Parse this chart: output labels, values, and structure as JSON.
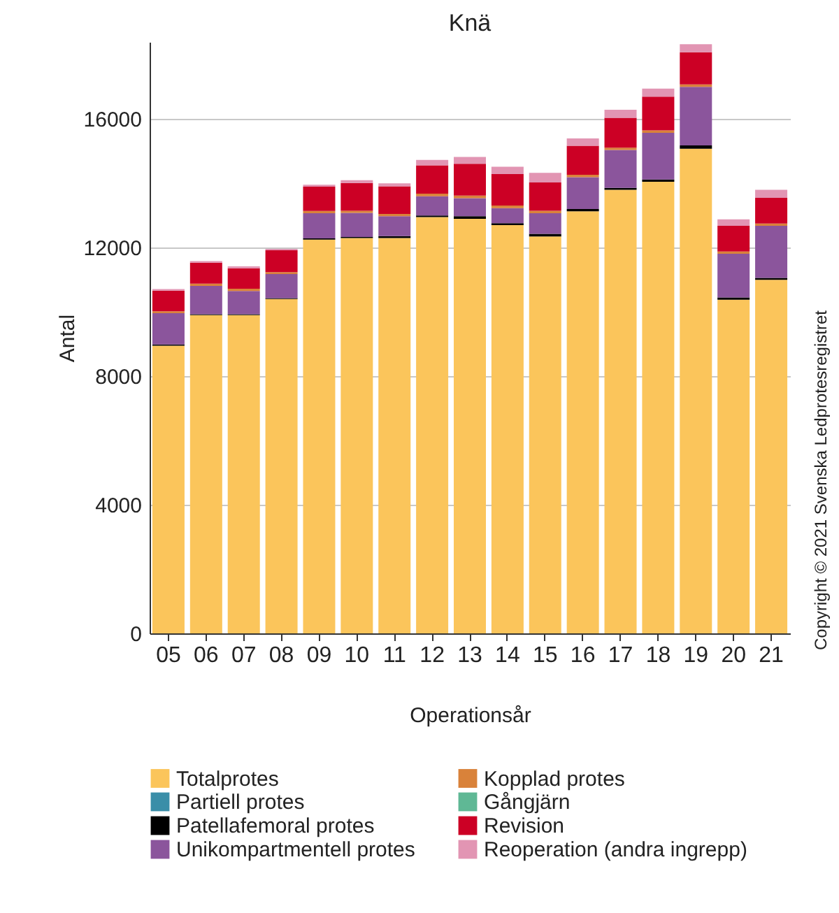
{
  "chart_data": {
    "type": "bar",
    "title": "Knä",
    "xlabel": "Operationsår",
    "ylabel": "Antal",
    "stacked": true,
    "grid": "y",
    "legend": "bottom",
    "categories": [
      "05",
      "06",
      "07",
      "08",
      "09",
      "10",
      "11",
      "12",
      "13",
      "14",
      "15",
      "16",
      "17",
      "18",
      "19",
      "20",
      "21"
    ],
    "ylim": [
      0,
      18400
    ],
    "yticks": [
      0,
      4000,
      8000,
      12000,
      16000
    ],
    "annotations": [
      "Copyright © 2021 Svenska Ledprotesregistret"
    ],
    "series": [
      {
        "name": "Totalprotes",
        "color": "#fbc55b",
        "values": [
          8950,
          9900,
          9900,
          10400,
          12250,
          12300,
          12300,
          12950,
          12900,
          12700,
          12350,
          13130,
          13800,
          14050,
          15080,
          10380,
          11000
        ]
      },
      {
        "name": "Partiell protes",
        "color": "#3a8ea8",
        "values": [
          null,
          null,
          null,
          null,
          null,
          null,
          null,
          null,
          null,
          null,
          null,
          null,
          null,
          null,
          null,
          null,
          null
        ]
      },
      {
        "name": "Patellafemoral protes",
        "color": "#000000",
        "values": [
          40,
          30,
          30,
          30,
          40,
          30,
          60,
          50,
          80,
          60,
          80,
          70,
          60,
          70,
          100,
          70,
          60
        ]
      },
      {
        "name": "Unikompartmentell protes",
        "color": "#8b559c",
        "values": [
          970,
          880,
          720,
          750,
          780,
          750,
          620,
          600,
          560,
          470,
          640,
          990,
          1180,
          1450,
          1820,
          1360,
          1620
        ]
      },
      {
        "name": "Kopplad protes",
        "color": "#d9823a",
        "values": [
          60,
          70,
          70,
          60,
          70,
          70,
          70,
          80,
          80,
          80,
          80,
          80,
          70,
          80,
          80,
          70,
          70
        ]
      },
      {
        "name": "Gångjärn",
        "color": "#5fb895",
        "values": [
          null,
          null,
          null,
          null,
          null,
          null,
          null,
          null,
          null,
          null,
          null,
          null,
          null,
          null,
          null,
          null,
          null
        ]
      },
      {
        "name": "Revision",
        "color": "#cc0025",
        "values": [
          640,
          650,
          640,
          680,
          760,
          860,
          860,
          880,
          990,
          980,
          880,
          900,
          930,
          1050,
          1000,
          800,
          800
        ]
      },
      {
        "name": "Reoperation (andra ingrepp)",
        "color": "#e295b3",
        "values": [
          50,
          50,
          60,
          40,
          60,
          90,
          90,
          170,
          210,
          230,
          300,
          230,
          250,
          250,
          250,
          200,
          250
        ]
      }
    ]
  }
}
